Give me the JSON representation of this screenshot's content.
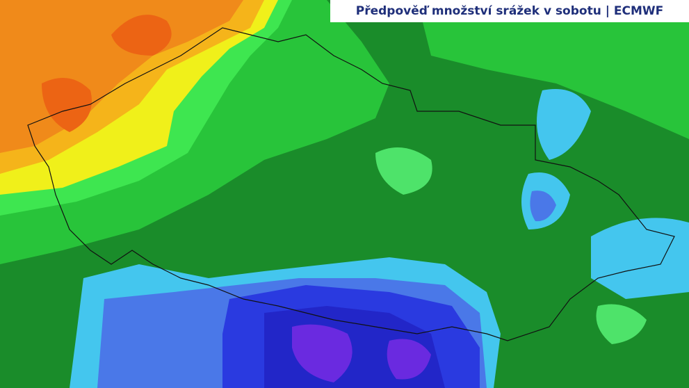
{
  "header": {
    "title": "Předpověď množství srážek v sobotu | ECMWF"
  }
}
